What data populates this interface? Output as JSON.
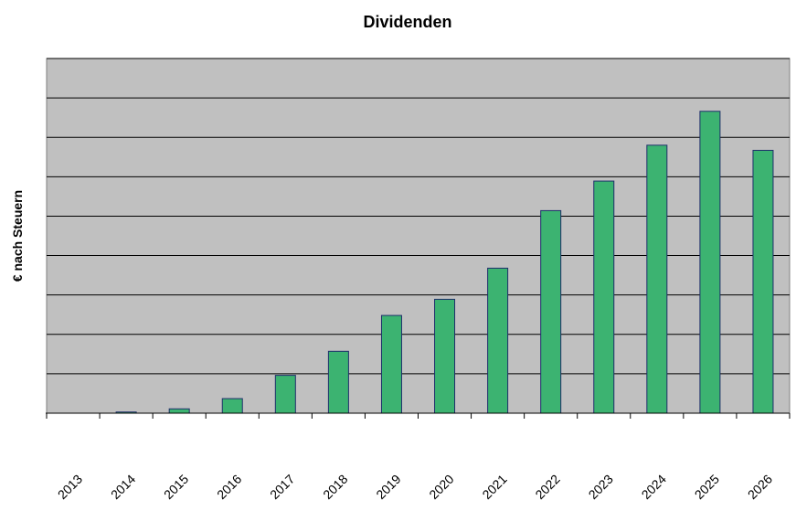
{
  "chart_data": {
    "type": "bar",
    "title": "Dividenden",
    "xlabel": "",
    "ylabel": "€ nach Steuern",
    "categories": [
      "2013",
      "2014",
      "2015",
      "2016",
      "2017",
      "2018",
      "2019",
      "2020",
      "2021",
      "2022",
      "2023",
      "2024",
      "2025",
      "2026"
    ],
    "values": [
      0,
      0.3,
      1.1,
      3.7,
      9.6,
      15.7,
      24.8,
      28.9,
      36.8,
      51.4,
      58.9,
      68.0,
      76.6,
      66.7
    ],
    "ylim": [
      0,
      90
    ],
    "grid": true,
    "legend": "none",
    "colors": {
      "bar_fill": "#3CB371",
      "bar_stroke": "#1F2F6B",
      "plot_background": "#C0C0C0",
      "gridline": "#000000",
      "axis": "#000000"
    }
  }
}
